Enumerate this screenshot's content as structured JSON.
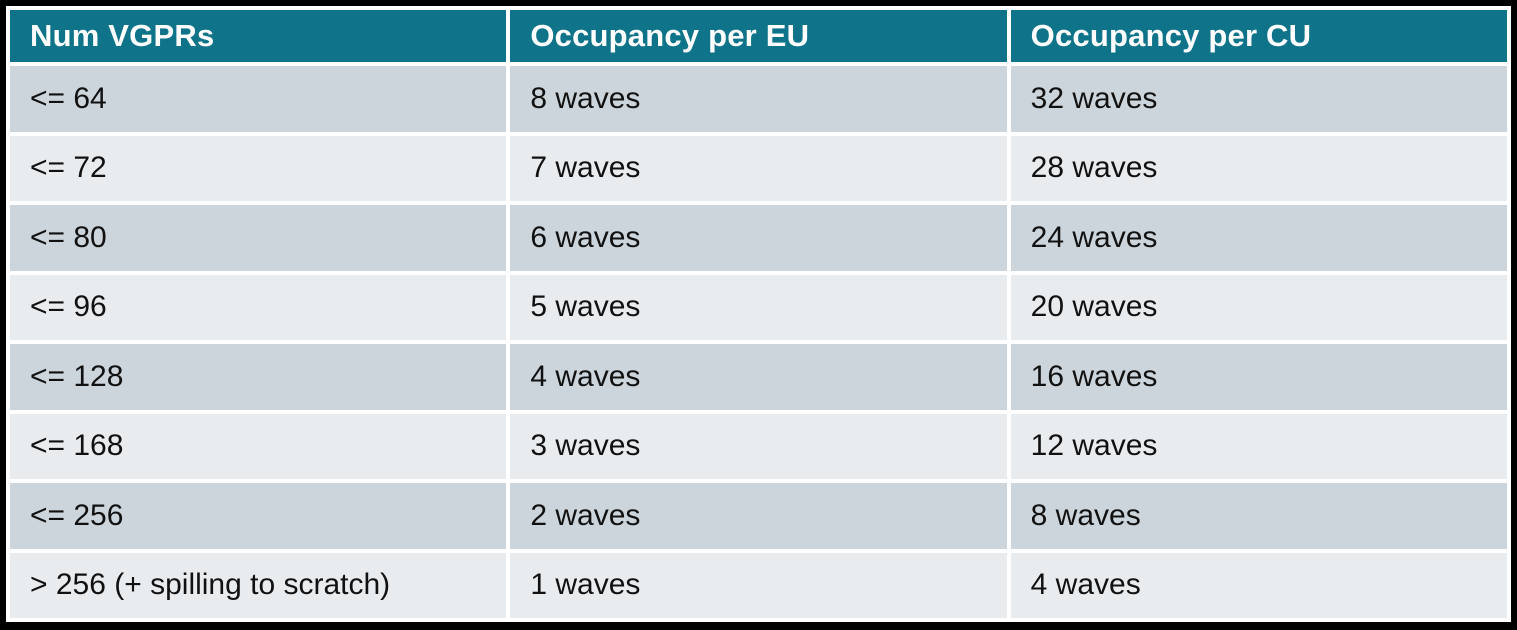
{
  "table": {
    "columns": [
      "Num VGPRs",
      "Occupancy per EU",
      "Occupancy per CU"
    ],
    "rows": [
      [
        "<= 64",
        "8 waves",
        "32 waves"
      ],
      [
        "<= 72",
        "7 waves",
        "28 waves"
      ],
      [
        "<= 80",
        "6 waves",
        "24 waves"
      ],
      [
        "<= 96",
        "5 waves",
        "20 waves"
      ],
      [
        "<= 128",
        "4 waves",
        "16 waves"
      ],
      [
        "<= 168",
        "3 waves",
        "12 waves"
      ],
      [
        "<= 256",
        "2 waves",
        "8 waves"
      ],
      [
        "> 256 (+ spilling to scratch)",
        "1 waves",
        "4 waves"
      ]
    ]
  },
  "colors": {
    "header_bg": "#0f7389",
    "header_text": "#ffffff",
    "row_dark": "#ccd5db",
    "row_light": "#e8ecef",
    "body_text": "#111111",
    "frame": "#000000",
    "gap": "#ffffff"
  },
  "chart_data": {
    "type": "table",
    "columns": [
      "Num VGPRs",
      "Occupancy per EU",
      "Occupancy per CU"
    ],
    "rows": [
      {
        "num_vgprs": "<= 64",
        "occupancy_per_eu_waves": 8,
        "occupancy_per_cu_waves": 32
      },
      {
        "num_vgprs": "<= 72",
        "occupancy_per_eu_waves": 7,
        "occupancy_per_cu_waves": 28
      },
      {
        "num_vgprs": "<= 80",
        "occupancy_per_eu_waves": 6,
        "occupancy_per_cu_waves": 24
      },
      {
        "num_vgprs": "<= 96",
        "occupancy_per_eu_waves": 5,
        "occupancy_per_cu_waves": 20
      },
      {
        "num_vgprs": "<= 128",
        "occupancy_per_eu_waves": 4,
        "occupancy_per_cu_waves": 16
      },
      {
        "num_vgprs": "<= 168",
        "occupancy_per_eu_waves": 3,
        "occupancy_per_cu_waves": 12
      },
      {
        "num_vgprs": "<= 256",
        "occupancy_per_eu_waves": 2,
        "occupancy_per_cu_waves": 8
      },
      {
        "num_vgprs": "> 256 (+ spilling to scratch)",
        "occupancy_per_eu_waves": 1,
        "occupancy_per_cu_waves": 4
      }
    ],
    "layout_hints": {
      "header_style": "teal band, white bold text",
      "row_striping": "alternating dark/light starting dark",
      "outer_border": "thick black frame"
    }
  }
}
